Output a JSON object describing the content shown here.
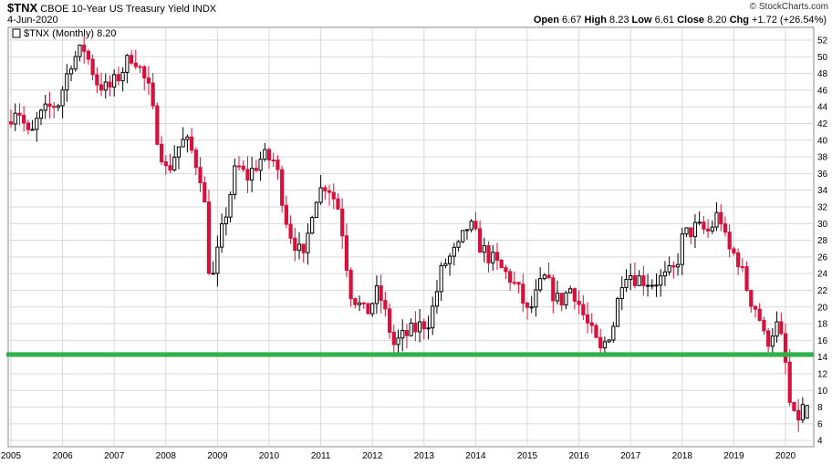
{
  "header": {
    "symbol": "$TNX",
    "name": "CBOE 10-Year US Treasury Yield",
    "exchange": "INDX",
    "date": "4-Jun-2020",
    "open_label": "Open",
    "open": "6.67",
    "high_label": "High",
    "high": "8.23",
    "low_label": "Low",
    "low": "6.61",
    "close_label": "Close",
    "close": "8.20",
    "chg_label": "Chg",
    "chg": "+1.72 (+26.54%)",
    "copyright": "© StockCharts.com"
  },
  "legend": {
    "text": "$TNX (Monthly) 8.20"
  },
  "colors": {
    "up": "#000000",
    "down": "#d8103c",
    "support": "#2db34a",
    "grid": "#d9d9d9"
  },
  "chart_data": {
    "type": "candlestick",
    "title": "CBOE 10-Year US Treasury Yield",
    "period": "Monthly",
    "x_range": [
      2005,
      2020.45
    ],
    "ylim": [
      3,
      53
    ],
    "y_ticks": [
      4,
      6,
      8,
      10,
      12,
      14,
      16,
      18,
      20,
      22,
      24,
      26,
      28,
      30,
      32,
      34,
      36,
      38,
      40,
      42,
      44,
      46,
      48,
      50,
      52
    ],
    "x_ticks": [
      "2005",
      "2006",
      "2007",
      "2008",
      "2009",
      "2010",
      "2011",
      "2012",
      "2013",
      "2014",
      "2015",
      "2016",
      "2017",
      "2018",
      "2019",
      "2020"
    ],
    "support_level": 14.3,
    "anchors": [
      [
        2005.0,
        42.2
      ],
      [
        2005.2,
        44.2
      ],
      [
        2005.45,
        40.0
      ],
      [
        2005.6,
        42.5
      ],
      [
        2005.85,
        44.0
      ],
      [
        2006.0,
        44.5
      ],
      [
        2006.25,
        49.5
      ],
      [
        2006.5,
        51.0
      ],
      [
        2006.75,
        47.0
      ],
      [
        2006.95,
        46.0
      ],
      [
        2007.1,
        47.0
      ],
      [
        2007.45,
        50.5
      ],
      [
        2007.75,
        46.0
      ],
      [
        2007.9,
        41.0
      ],
      [
        2008.1,
        36.0
      ],
      [
        2008.3,
        39.0
      ],
      [
        2008.45,
        40.0
      ],
      [
        2008.6,
        38.5
      ],
      [
        2008.8,
        35.0
      ],
      [
        2008.95,
        22.0
      ],
      [
        2009.15,
        28.5
      ],
      [
        2009.45,
        37.0
      ],
      [
        2009.65,
        35.5
      ],
      [
        2009.95,
        38.0
      ],
      [
        2010.2,
        37.5
      ],
      [
        2010.45,
        29.5
      ],
      [
        2010.75,
        25.5
      ],
      [
        2010.95,
        33.0
      ],
      [
        2011.2,
        35.0
      ],
      [
        2011.45,
        31.5
      ],
      [
        2011.65,
        22.0
      ],
      [
        2011.95,
        19.0
      ],
      [
        2012.2,
        22.0
      ],
      [
        2012.5,
        15.5
      ],
      [
        2012.7,
        16.5
      ],
      [
        2012.95,
        17.5
      ],
      [
        2013.2,
        18.5
      ],
      [
        2013.45,
        25.0
      ],
      [
        2013.75,
        27.0
      ],
      [
        2013.95,
        30.0
      ],
      [
        2014.2,
        27.0
      ],
      [
        2014.5,
        25.0
      ],
      [
        2014.75,
        23.5
      ],
      [
        2014.95,
        21.5
      ],
      [
        2015.1,
        19.0
      ],
      [
        2015.4,
        23.5
      ],
      [
        2015.7,
        20.5
      ],
      [
        2015.95,
        22.5
      ],
      [
        2016.2,
        18.5
      ],
      [
        2016.5,
        14.6
      ],
      [
        2016.75,
        18.0
      ],
      [
        2016.95,
        24.5
      ],
      [
        2017.2,
        23.5
      ],
      [
        2017.5,
        23.0
      ],
      [
        2017.75,
        23.5
      ],
      [
        2017.95,
        24.5
      ],
      [
        2018.1,
        28.5
      ],
      [
        2018.35,
        29.5
      ],
      [
        2018.6,
        29.0
      ],
      [
        2018.8,
        31.5
      ],
      [
        2018.95,
        27.0
      ],
      [
        2019.15,
        26.0
      ],
      [
        2019.4,
        21.0
      ],
      [
        2019.55,
        19.5
      ],
      [
        2019.7,
        15.5
      ],
      [
        2019.9,
        18.0
      ],
      [
        2020.05,
        15.0
      ],
      [
        2020.2,
        6.5
      ],
      [
        2020.3,
        6.5
      ],
      [
        2020.45,
        8.2
      ]
    ]
  }
}
